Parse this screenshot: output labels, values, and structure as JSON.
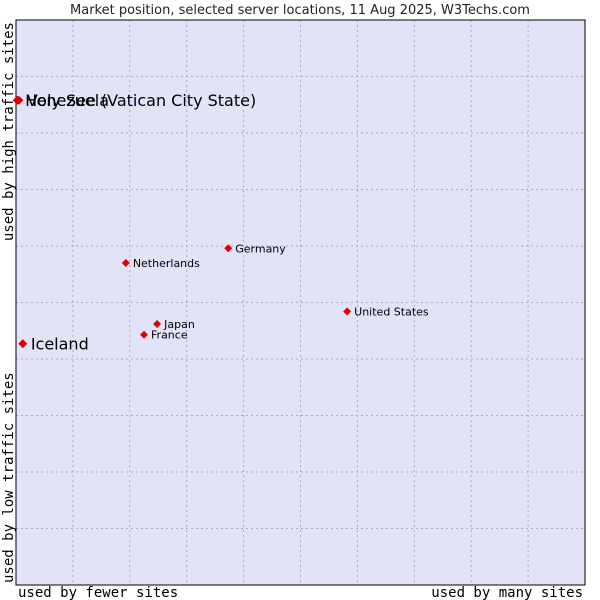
{
  "chart_data": {
    "type": "scatter",
    "title": "Market position, selected server locations, 11 Aug 2025, W3Techs.com",
    "xlabel_left": "used by fewer sites",
    "xlabel_right": "used by many sites",
    "ylabel_bottom": "used by low traffic sites",
    "ylabel_top": "used by high traffic sites",
    "xlim": [
      0,
      100
    ],
    "ylim": [
      0,
      100
    ],
    "grid": true,
    "colors": {
      "plot_bg": "#e3e3f8",
      "marker": "#e00000",
      "grid": "#a9a9c8"
    },
    "points": [
      {
        "label": "Holy See (Vatican City State)",
        "x": 0.2,
        "y": 85.8,
        "size": "big"
      },
      {
        "label": "Venezuela",
        "x": 0.5,
        "y": 85.8,
        "size": "big"
      },
      {
        "label": "Iceland",
        "x": 1.2,
        "y": 42.7,
        "size": "big"
      },
      {
        "label": "Germany",
        "x": 37.3,
        "y": 59.6,
        "size": "small"
      },
      {
        "label": "Netherlands",
        "x": 19.3,
        "y": 57.0,
        "size": "small"
      },
      {
        "label": "United States",
        "x": 58.2,
        "y": 48.4,
        "size": "small"
      },
      {
        "label": "Japan",
        "x": 24.8,
        "y": 46.2,
        "size": "small"
      },
      {
        "label": "France",
        "x": 22.5,
        "y": 44.3,
        "size": "small"
      }
    ]
  }
}
